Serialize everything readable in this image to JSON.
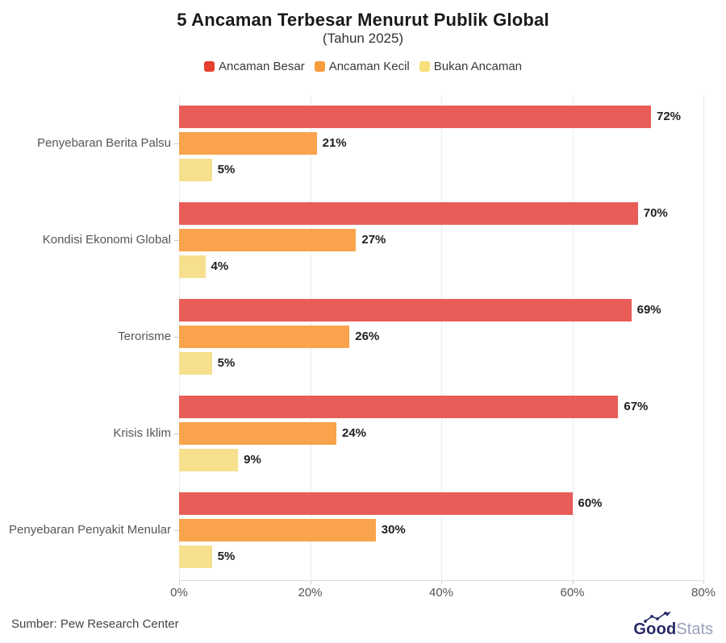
{
  "header": {
    "title": "5 Ancaman Terbesar Menurut Publik Global",
    "subtitle": "(Tahun 2025)"
  },
  "chart_data": {
    "type": "bar",
    "orientation": "horizontal",
    "title": "5 Ancaman Terbesar Menurut Publik Global",
    "subtitle": "(Tahun 2025)",
    "categories": [
      "Penyebaran Berita Palsu",
      "Kondisi Ekonomi Global",
      "Terorisme",
      "Krisis Iklim",
      "Penyebaran Penyakit Menular"
    ],
    "series": [
      {
        "name": "Ancaman Besar",
        "color": "#e85d58",
        "legend_color": "#e6402f",
        "values": [
          72,
          70,
          69,
          67,
          60
        ]
      },
      {
        "name": "Ancaman Kecil",
        "color": "#f9a44c",
        "legend_color": "#f89c3c",
        "values": [
          21,
          27,
          26,
          24,
          30
        ]
      },
      {
        "name": "Bukan Ancaman",
        "color": "#f6e08d",
        "legend_color": "#f7df7b",
        "values": [
          5,
          4,
          5,
          9,
          5
        ]
      }
    ],
    "value_suffix": "%",
    "x_ticks": [
      "0%",
      "20%",
      "40%",
      "60%",
      "80%"
    ],
    "xlim": [
      0,
      80
    ],
    "grid": true,
    "legend_position": "top"
  },
  "footer": {
    "source": "Sumber: Pew Research Center",
    "logo": {
      "good": "Good",
      "stats": "Stats"
    }
  },
  "colors": {
    "gridline": "#ececec",
    "axis_line": "#dcdcdc",
    "category_label": "#565656",
    "value_label": "#1f1f1f",
    "logo_navy": "#262a66",
    "logo_gray_blue": "#98a0bb"
  }
}
